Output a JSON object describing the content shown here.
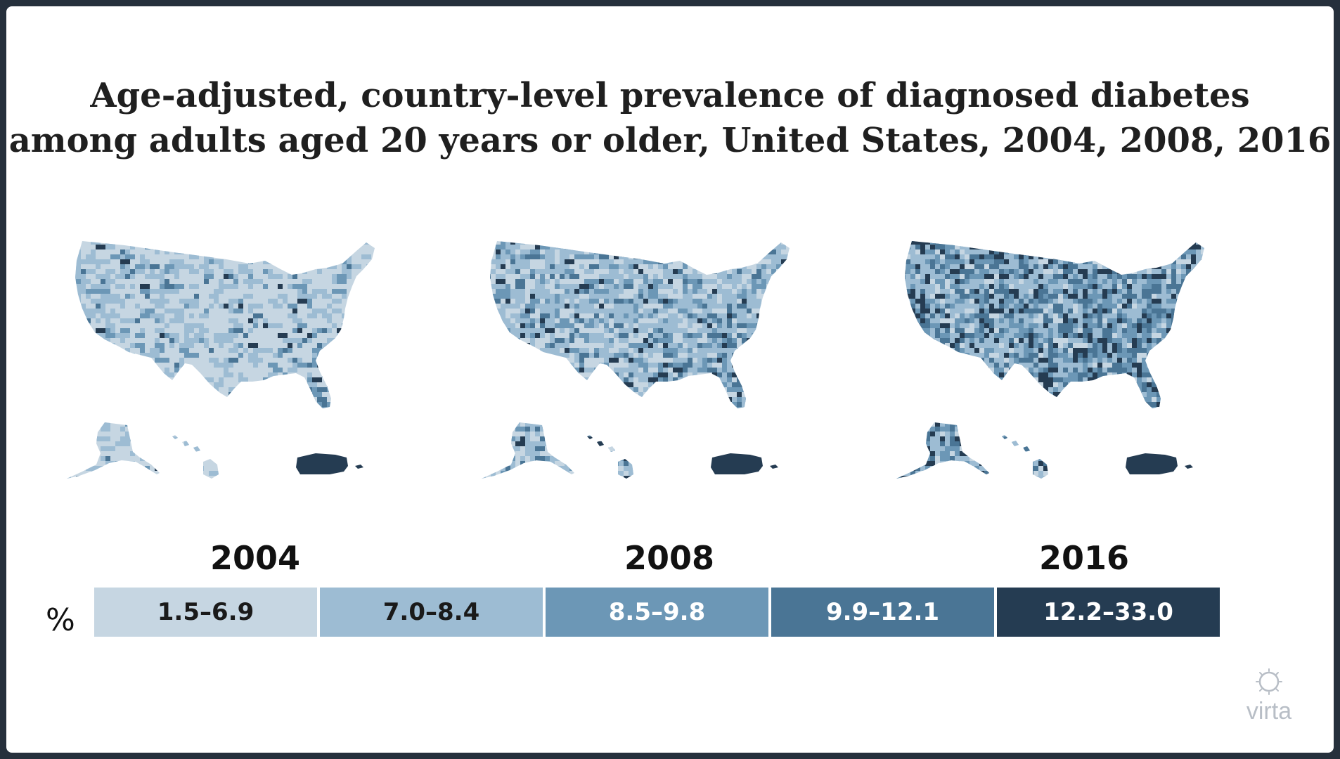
{
  "title": {
    "line1": "Age-adjusted, country-level prevalence of diagnosed diabetes",
    "line2": "among adults aged 20 years or older, United States, 2004, 2008, 2016"
  },
  "maps": [
    {
      "year": "2004",
      "bin_weights": [
        0.6,
        0.2,
        0.12,
        0.06,
        0.02
      ]
    },
    {
      "year": "2008",
      "bin_weights": [
        0.3,
        0.28,
        0.24,
        0.12,
        0.06
      ]
    },
    {
      "year": "2016",
      "bin_weights": [
        0.1,
        0.18,
        0.27,
        0.27,
        0.18
      ]
    }
  ],
  "legend": {
    "unit": "%",
    "bins": [
      {
        "label": "1.5–6.9",
        "color": "#c6d6e2",
        "text_color": "#1a1a1a"
      },
      {
        "label": "7.0–8.4",
        "color": "#9dbcd3",
        "text_color": "#1a1a1a"
      },
      {
        "label": "8.5–9.8",
        "color": "#6c97b6",
        "text_color": "#ffffff"
      },
      {
        "label": "9.9–12.1",
        "color": "#4a7595",
        "text_color": "#ffffff"
      },
      {
        "label": "12.2–33.0",
        "color": "#253c52",
        "text_color": "#ffffff"
      }
    ]
  },
  "logo": {
    "text": "virta",
    "icon": "sun-icon",
    "color": "#b8bec6"
  }
}
